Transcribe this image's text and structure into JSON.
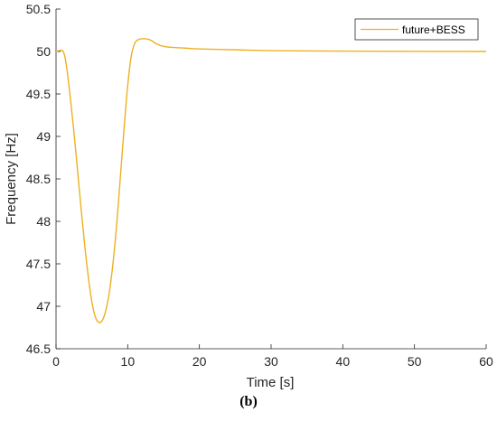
{
  "caption": "(b)",
  "chart_data": {
    "type": "line",
    "xlabel": "Time [s]",
    "ylabel": "Frequency [Hz]",
    "xlim": [
      0,
      60
    ],
    "ylim": [
      46.5,
      50.5
    ],
    "xticks": [
      0,
      10,
      20,
      30,
      40,
      50,
      60
    ],
    "yticks": [
      46.5,
      47,
      47.5,
      48,
      48.5,
      49,
      49.5,
      50,
      50.5
    ],
    "xtick_labels": [
      "0",
      "10",
      "20",
      "30",
      "40",
      "50",
      "60"
    ],
    "ytick_labels": [
      "46.5",
      "47",
      "47.5",
      "48",
      "48.5",
      "49",
      "49.5",
      "50",
      "50.5"
    ],
    "grid": false,
    "legend_position": "top-right",
    "series": [
      {
        "name": "future+BESS",
        "color": "#EDB120",
        "x": [
          0,
          1,
          1.5,
          2,
          2.5,
          3,
          3.5,
          4,
          4.5,
          5,
          5.5,
          6,
          6.5,
          7,
          7.5,
          8,
          8.5,
          9,
          9.5,
          10,
          10.5,
          11,
          11.5,
          12,
          12.5,
          13,
          13.5,
          14,
          15,
          16,
          18,
          20,
          25,
          30,
          40,
          50,
          60
        ],
        "y": [
          50.0,
          50.0,
          49.8,
          49.45,
          49.05,
          48.6,
          48.15,
          47.72,
          47.35,
          47.05,
          46.87,
          46.81,
          46.84,
          46.97,
          47.2,
          47.55,
          48.0,
          48.55,
          49.1,
          49.6,
          49.95,
          50.1,
          50.14,
          50.15,
          50.15,
          50.14,
          50.12,
          50.09,
          50.06,
          50.05,
          50.04,
          50.03,
          50.02,
          50.01,
          50.005,
          50.002,
          50.0
        ]
      }
    ]
  }
}
